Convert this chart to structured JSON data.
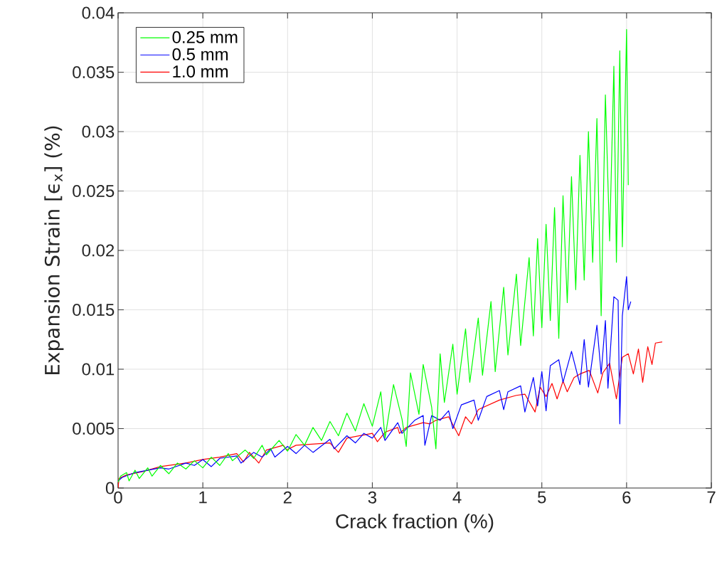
{
  "chart_data": {
    "type": "line",
    "xlabel": "Crack fraction (%)",
    "ylabel": "Expansion Strain [ϵ$_{x}$] (%)",
    "xlim": [
      0,
      7
    ],
    "ylim": [
      0,
      0.04
    ],
    "xticks": [
      0,
      1,
      2,
      3,
      4,
      5,
      6,
      7
    ],
    "yticks": [
      0,
      0.005,
      0.01,
      0.015,
      0.02,
      0.025,
      0.03,
      0.035,
      0.04
    ],
    "grid": true,
    "legend": "top left",
    "marker": "none",
    "line_style": "solid",
    "series": [
      {
        "name": "0.25 mm",
        "color": "#00ff00",
        "x": [
          0,
          0.03,
          0.1,
          0.13,
          0.2,
          0.25,
          0.35,
          0.4,
          0.5,
          0.6,
          0.7,
          0.8,
          0.9,
          1.0,
          1.1,
          1.2,
          1.3,
          1.35,
          1.5,
          1.6,
          1.7,
          1.75,
          1.9,
          2.0,
          2.1,
          2.2,
          2.3,
          2.4,
          2.5,
          2.6,
          2.7,
          2.8,
          2.9,
          3.0,
          3.1,
          3.15,
          3.25,
          3.35,
          3.4,
          3.45,
          3.55,
          3.6,
          3.7,
          3.75,
          3.8,
          3.85,
          3.95,
          4.0,
          4.1,
          4.15,
          4.25,
          4.3,
          4.4,
          4.45,
          4.55,
          4.6,
          4.7,
          4.75,
          4.85,
          4.9,
          4.95,
          5.0,
          5.05,
          5.1,
          5.15,
          5.2,
          5.25,
          5.3,
          5.35,
          5.4,
          5.45,
          5.5,
          5.55,
          5.6,
          5.65,
          5.7,
          5.75,
          5.8,
          5.85,
          5.88,
          5.92,
          5.95,
          6.0,
          6.02
        ],
        "values": [
          0.0005,
          0.001,
          0.0013,
          0.0006,
          0.0015,
          0.0008,
          0.0017,
          0.001,
          0.0019,
          0.0012,
          0.0021,
          0.0016,
          0.0023,
          0.0017,
          0.0026,
          0.0019,
          0.0029,
          0.0023,
          0.0032,
          0.0025,
          0.0036,
          0.0028,
          0.004,
          0.0031,
          0.0045,
          0.0036,
          0.0051,
          0.004,
          0.0056,
          0.0044,
          0.0063,
          0.0048,
          0.0071,
          0.0052,
          0.0081,
          0.0042,
          0.0087,
          0.0058,
          0.0035,
          0.0097,
          0.0062,
          0.0104,
          0.0068,
          0.0033,
          0.0113,
          0.0072,
          0.0121,
          0.0079,
          0.0134,
          0.0089,
          0.0143,
          0.0095,
          0.0157,
          0.0098,
          0.0169,
          0.0112,
          0.018,
          0.012,
          0.0194,
          0.0128,
          0.021,
          0.0135,
          0.0222,
          0.0141,
          0.0236,
          0.0126,
          0.0246,
          0.0156,
          0.0262,
          0.0167,
          0.028,
          0.0175,
          0.03,
          0.019,
          0.0311,
          0.0145,
          0.0331,
          0.0208,
          0.0355,
          0.019,
          0.0368,
          0.0203,
          0.0386,
          0.0255
        ]
      },
      {
        "name": "0.5 mm",
        "color": "#0000ff",
        "x": [
          0,
          0.05,
          0.2,
          0.5,
          0.6,
          0.8,
          0.9,
          1.0,
          1.1,
          1.2,
          1.4,
          1.45,
          1.6,
          1.7,
          1.8,
          1.85,
          2.0,
          2.1,
          2.2,
          2.3,
          2.5,
          2.55,
          2.7,
          2.8,
          2.9,
          3.0,
          3.1,
          3.15,
          3.3,
          3.35,
          3.5,
          3.6,
          3.62,
          3.7,
          3.8,
          3.9,
          3.95,
          4.05,
          4.2,
          4.25,
          4.35,
          4.5,
          4.55,
          4.6,
          4.75,
          4.8,
          4.9,
          4.95,
          5.0,
          5.05,
          5.1,
          5.2,
          5.25,
          5.35,
          5.45,
          5.5,
          5.55,
          5.65,
          5.7,
          5.75,
          5.78,
          5.85,
          5.9,
          5.92,
          5.95,
          6.0,
          6.02,
          6.05
        ],
        "values": [
          0.0006,
          0.0009,
          0.0013,
          0.0017,
          0.0016,
          0.0021,
          0.0019,
          0.0024,
          0.0018,
          0.0025,
          0.0027,
          0.0021,
          0.003,
          0.0026,
          0.0033,
          0.0026,
          0.0035,
          0.0029,
          0.0036,
          0.003,
          0.0041,
          0.0033,
          0.0044,
          0.0038,
          0.0046,
          0.0042,
          0.0051,
          0.004,
          0.0055,
          0.0046,
          0.0057,
          0.0061,
          0.0036,
          0.0061,
          0.0057,
          0.0065,
          0.005,
          0.007,
          0.0074,
          0.0057,
          0.0077,
          0.0082,
          0.0066,
          0.0081,
          0.0086,
          0.0064,
          0.0093,
          0.0069,
          0.0098,
          0.0065,
          0.0103,
          0.0108,
          0.0089,
          0.0115,
          0.0087,
          0.0125,
          0.0085,
          0.0137,
          0.0096,
          0.0141,
          0.0084,
          0.0161,
          0.0158,
          0.0054,
          0.0145,
          0.0178,
          0.015,
          0.0157
        ]
      },
      {
        "name": "1.0 mm",
        "color": "#ff0000",
        "x": [
          0,
          0.01,
          0.1,
          0.3,
          0.5,
          0.8,
          1.0,
          1.2,
          1.4,
          1.48,
          1.55,
          1.66,
          1.75,
          1.95,
          1.99,
          2.1,
          2.5,
          2.6,
          2.7,
          3.0,
          3.06,
          3.15,
          3.3,
          3.32,
          3.4,
          3.6,
          3.68,
          3.75,
          3.9,
          4.02,
          4.1,
          4.17,
          4.25,
          4.5,
          4.7,
          4.8,
          4.92,
          4.98,
          5.05,
          5.12,
          5.18,
          5.25,
          5.3,
          5.38,
          5.45,
          5.56,
          5.66,
          5.72,
          5.8,
          5.88,
          5.95,
          6.02,
          6.08,
          6.14,
          6.19,
          6.25,
          6.3,
          6.34,
          6.42
        ],
        "values": [
          0,
          0.0008,
          0.0011,
          0.0014,
          0.0018,
          0.0021,
          0.0024,
          0.0026,
          0.0029,
          0.0022,
          0.003,
          0.0021,
          0.0032,
          0.0036,
          0.0032,
          0.0036,
          0.0038,
          0.003,
          0.0042,
          0.0046,
          0.0039,
          0.0047,
          0.0051,
          0.0046,
          0.0051,
          0.0055,
          0.0054,
          0.0057,
          0.006,
          0.0044,
          0.006,
          0.0054,
          0.0066,
          0.0074,
          0.0078,
          0.0079,
          0.0064,
          0.0085,
          0.0077,
          0.0088,
          0.0075,
          0.009,
          0.0081,
          0.0093,
          0.0096,
          0.0099,
          0.008,
          0.0097,
          0.0105,
          0.0075,
          0.011,
          0.0113,
          0.0096,
          0.0117,
          0.0089,
          0.0119,
          0.0104,
          0.0122,
          0.0123
        ]
      }
    ]
  }
}
